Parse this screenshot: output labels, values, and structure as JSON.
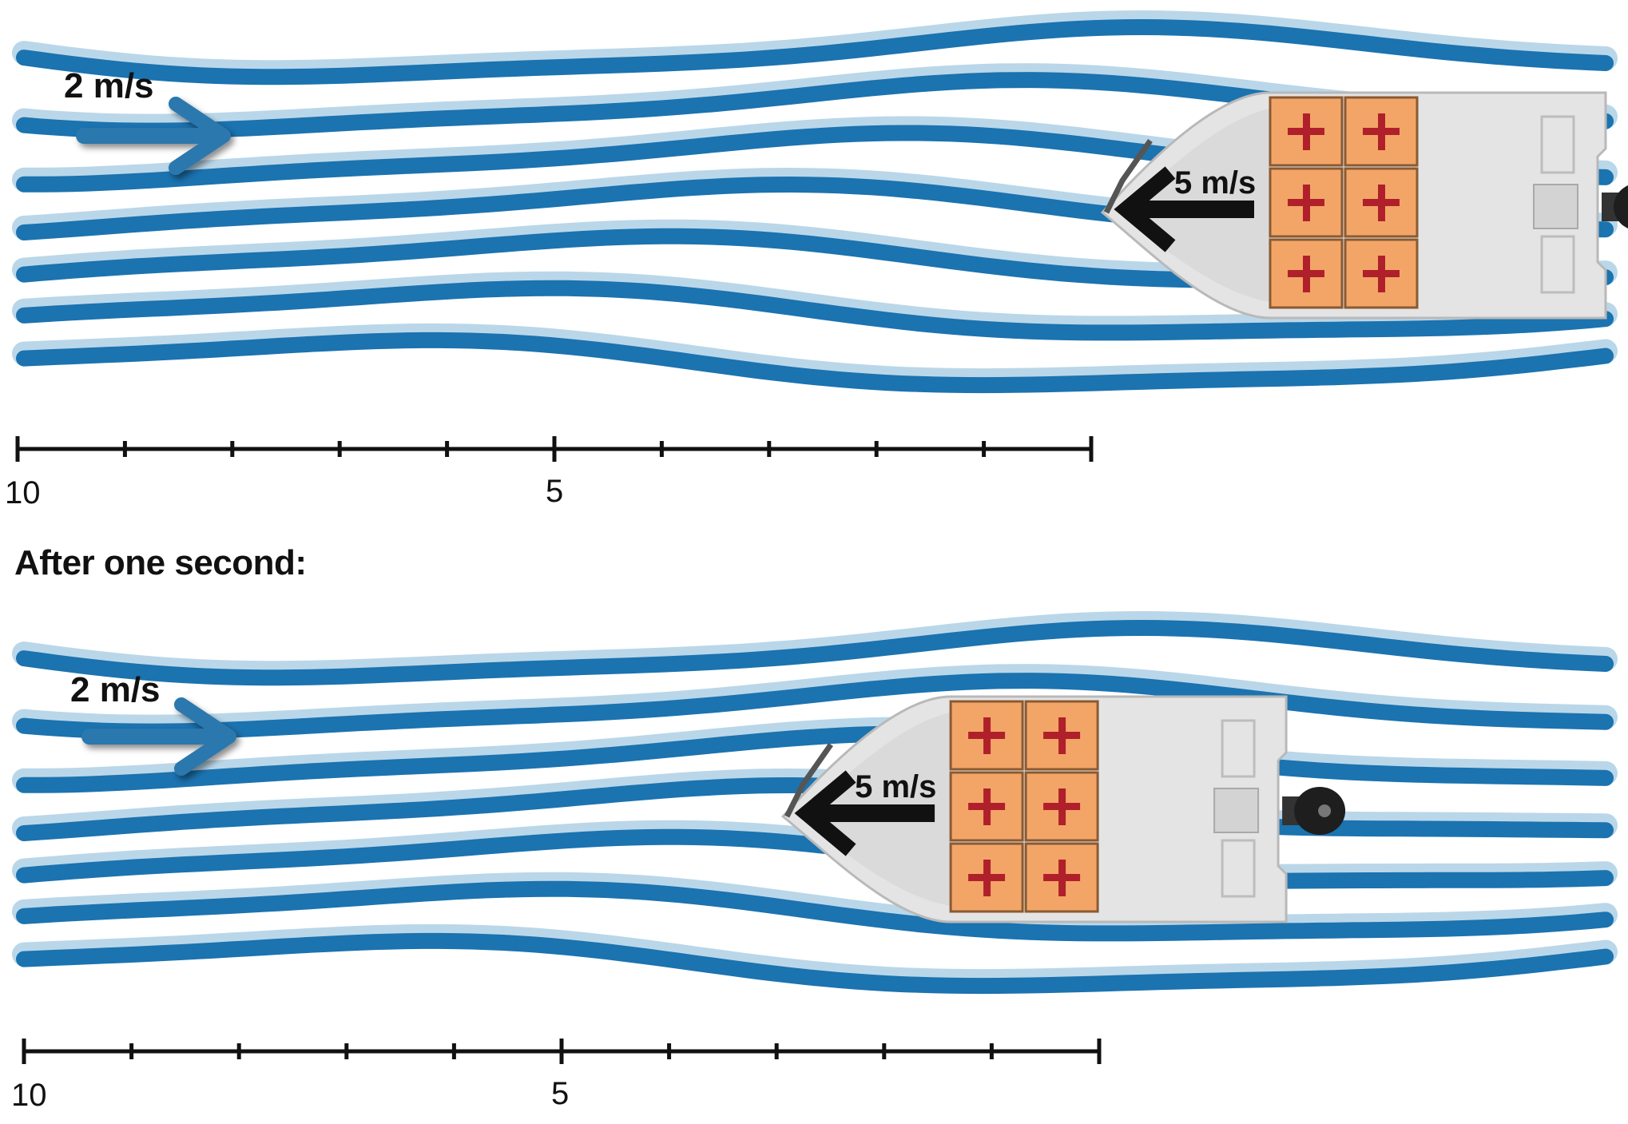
{
  "colors": {
    "water_dark": "#1b73b0",
    "water_light": "#a9cde4",
    "arrow_blue": "#2b78ad",
    "crate": "#f3a568",
    "crate_cross": "#b0202a",
    "hull": "#e4e4e4",
    "ink": "#111111"
  },
  "scenes": [
    {
      "id": "before",
      "current_label": "2 m/s",
      "boat_label": "5 m/s",
      "boat_position": 0,
      "scale": {
        "start_label": "10",
        "mid_label": "5"
      }
    },
    {
      "id": "after",
      "current_label": "2 m/s",
      "boat_label": "5 m/s",
      "boat_position": 3,
      "scale": {
        "start_label": "10",
        "mid_label": "5"
      }
    }
  ],
  "caption": "After one second:",
  "icons": [
    "current-arrow-icon",
    "velocity-arrow-icon",
    "boat-icon",
    "medical-cross-icon",
    "outboard-motor-icon"
  ]
}
